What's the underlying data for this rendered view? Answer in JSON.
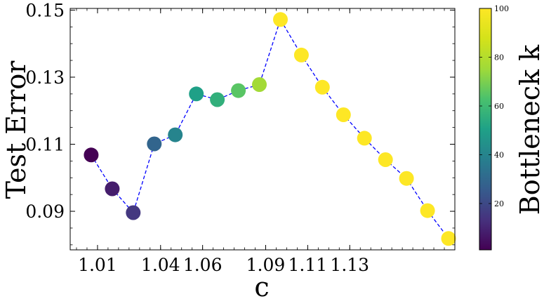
{
  "chart_data": {
    "type": "scatter",
    "xlabel": "c",
    "ylabel": "Test Error",
    "colorbar_label": "Bottleneck k",
    "xlim": [
      0.997,
      1.18
    ],
    "ylim": [
      0.0785,
      0.1505
    ],
    "x_ticks": [
      1.01,
      1.04,
      1.06,
      1.09,
      1.11,
      1.13
    ],
    "x_tick_labels": [
      "1.01",
      "1.04",
      "1.06",
      "1.09",
      "1.11",
      "1.13"
    ],
    "y_ticks": [
      0.09,
      0.11,
      0.13,
      0.15
    ],
    "y_tick_labels": [
      "0.09",
      "0.11",
      "0.13",
      "0.15"
    ],
    "colorbar_range": [
      1,
      100
    ],
    "colorbar_ticks": [
      20,
      40,
      60,
      80,
      100
    ],
    "colorbar_tick_labels": [
      "20",
      "40",
      "60",
      "80",
      "100"
    ],
    "colormap": "viridis",
    "line_color": "#0000ff",
    "line_style": "dashed",
    "grid": false,
    "points": [
      {
        "x": 1.007,
        "y": 0.1068,
        "k": 1
      },
      {
        "x": 1.017,
        "y": 0.0967,
        "k": 8
      },
      {
        "x": 1.027,
        "y": 0.0896,
        "k": 15
      },
      {
        "x": 1.037,
        "y": 0.1101,
        "k": 29
      },
      {
        "x": 1.047,
        "y": 0.1128,
        "k": 40
      },
      {
        "x": 1.057,
        "y": 0.125,
        "k": 50
      },
      {
        "x": 1.067,
        "y": 0.1233,
        "k": 56
      },
      {
        "x": 1.077,
        "y": 0.126,
        "k": 65
      },
      {
        "x": 1.087,
        "y": 0.1278,
        "k": 76
      },
      {
        "x": 1.097,
        "y": 0.1472,
        "k": 100
      },
      {
        "x": 1.107,
        "y": 0.1366,
        "k": 100
      },
      {
        "x": 1.117,
        "y": 0.127,
        "k": 100
      },
      {
        "x": 1.127,
        "y": 0.1188,
        "k": 100
      },
      {
        "x": 1.137,
        "y": 0.1118,
        "k": 100
      },
      {
        "x": 1.147,
        "y": 0.1054,
        "k": 100
      },
      {
        "x": 1.157,
        "y": 0.0998,
        "k": 100
      },
      {
        "x": 1.167,
        "y": 0.0902,
        "k": 100
      },
      {
        "x": 1.177,
        "y": 0.0819,
        "k": 100
      }
    ]
  }
}
